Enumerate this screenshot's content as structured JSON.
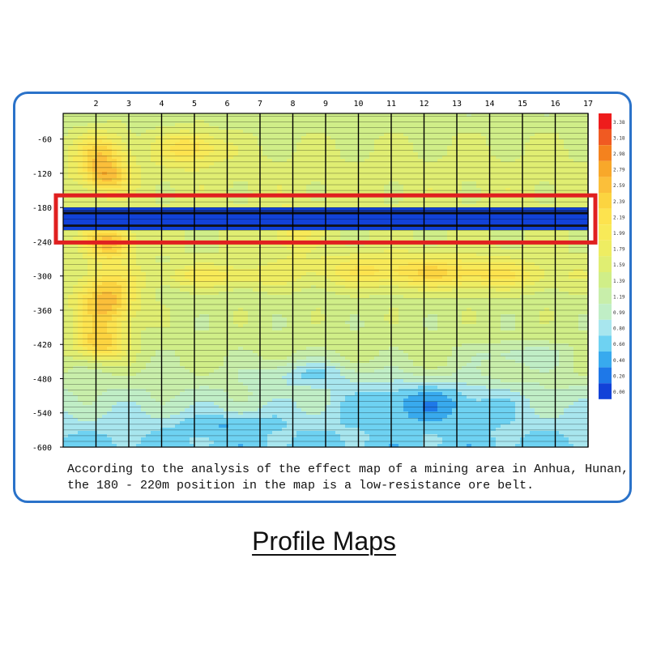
{
  "page_title": "Profile Maps",
  "caption": {
    "line1": "According to the analysis of the effect map of a mining area in Anhua, Hunan,",
    "line2": "the 180 - 220m position in the map is a low-resistance ore belt."
  },
  "colors": {
    "frame_border": "#2a72c9",
    "highlight_box": "#e02020",
    "ore_belt_core": "#1a4fd6"
  },
  "chart_data": {
    "type": "heatmap",
    "title": "",
    "xlabel": "",
    "ylabel": "",
    "x_ticks": [
      "2",
      "3",
      "4",
      "5",
      "6",
      "7",
      "8",
      "9",
      "10",
      "11",
      "12",
      "13",
      "14",
      "15",
      "16",
      "17"
    ],
    "x_range": [
      1,
      17
    ],
    "y_ticks": [
      "-60",
      "-120",
      "-180",
      "-240",
      "-300",
      "-360",
      "-420",
      "-480",
      "-540",
      "-600"
    ],
    "y_range": [
      -15,
      -600
    ],
    "colorbar": {
      "levels": [
        "3.38",
        "3.18",
        "2.98",
        "2.79",
        "2.59",
        "2.39",
        "2.19",
        "1.99",
        "1.79",
        "1.59",
        "1.39",
        "1.19",
        "0.99",
        "0.80",
        "0.60",
        "0.40",
        "0.20",
        "0.00"
      ],
      "colors": [
        "#ee1c1c",
        "#f05a22",
        "#f4821e",
        "#f8a82a",
        "#fbbf3a",
        "#fcd440",
        "#fde34e",
        "#f8ea58",
        "#eeed62",
        "#e0ee72",
        "#d0ee88",
        "#c8eeaa",
        "#c0eec6",
        "#a8e6ee",
        "#6ed2f2",
        "#38aaee",
        "#1e78e8",
        "#1242d8"
      ]
    },
    "annotation": {
      "label": "low-resistance ore belt",
      "y_from": -180,
      "y_to": -220
    }
  }
}
